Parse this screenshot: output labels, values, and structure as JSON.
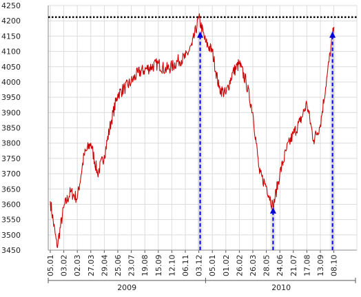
{
  "chart_data": {
    "type": "line",
    "title": "",
    "xlabel": "",
    "ylabel": "",
    "ylim": [
      3450,
      4250
    ],
    "yticks": [
      3450,
      3500,
      3550,
      3600,
      3650,
      3700,
      3750,
      3800,
      3850,
      3900,
      3950,
      4000,
      4050,
      4100,
      4150,
      4200,
      4250
    ],
    "x_tick_labels": [
      "05.01",
      "03.02",
      "02.03",
      "27.03",
      "29.04",
      "25.06",
      "23.07",
      "19.08",
      "15.09",
      "12.10",
      "06.11",
      "03.12",
      "05.01",
      "01.02",
      "26.02",
      "26.03",
      "28.05",
      "24.06",
      "21.07",
      "17.08",
      "13.09",
      "08.10"
    ],
    "year_labels": [
      "2009",
      "2010"
    ],
    "grid": true,
    "legend": "none",
    "reference_line": {
      "y": 4212,
      "style": "dotted",
      "color": "#000000"
    },
    "series": [
      {
        "color": "#cc0000",
        "x": [
          0,
          0.5,
          1,
          1.5,
          2,
          2.5,
          3,
          3.5,
          4,
          4.5,
          5,
          5.5,
          6,
          6.5,
          7,
          7.5,
          8,
          8.5,
          9,
          9.5,
          10,
          10.5,
          11,
          11.5,
          12,
          12.5,
          13,
          13.5,
          14,
          14.5,
          15,
          15.5,
          16,
          16.5,
          17,
          17.5,
          18,
          18.5,
          19,
          19.5,
          20,
          20.5,
          21
        ],
        "values": [
          3610,
          3460,
          3590,
          3640,
          3620,
          3760,
          3800,
          3700,
          3760,
          3870,
          3960,
          3980,
          4000,
          4030,
          4040,
          4050,
          4060,
          4040,
          4050,
          4070,
          4080,
          4120,
          4210,
          4130,
          4100,
          3980,
          3960,
          4030,
          4060,
          4000,
          3900,
          3700,
          3660,
          3590,
          3700,
          3780,
          3830,
          3870,
          3930,
          3810,
          3860,
          4020,
          4180
        ]
      }
    ],
    "annotations": [
      {
        "type": "arrow",
        "x": 11.1,
        "y": 4165,
        "color": "#0000dd"
      },
      {
        "type": "arrow",
        "x": 16.5,
        "y": 3590,
        "color": "#0000dd"
      },
      {
        "type": "arrow",
        "x": 20.9,
        "y": 4165,
        "color": "#0000dd"
      }
    ]
  }
}
